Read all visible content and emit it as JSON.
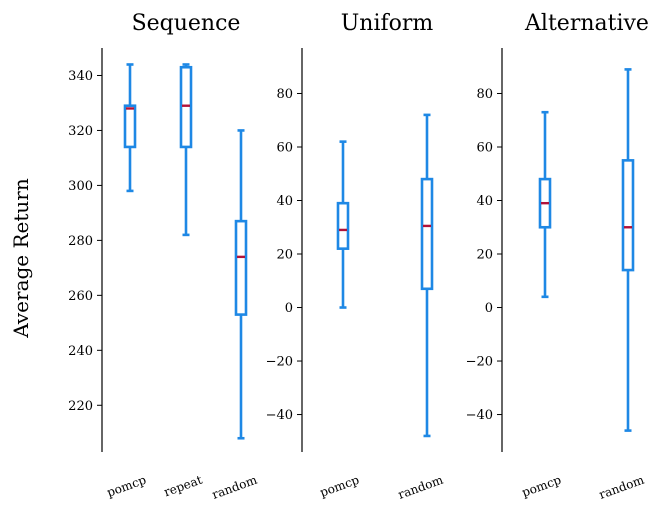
{
  "ylabel": "Average Return",
  "chart_data": [
    {
      "type": "boxplot",
      "title": "Sequence",
      "ylim": [
        203,
        350
      ],
      "yticks": [
        220,
        240,
        260,
        280,
        300,
        320,
        340
      ],
      "categories": [
        "pomcp",
        "repeat",
        "random"
      ],
      "boxes": [
        {
          "whislo": 298,
          "q1": 314,
          "med": 328,
          "q3": 329,
          "whishi": 344
        },
        {
          "whislo": 282,
          "q1": 314,
          "med": 329,
          "q3": 343,
          "whishi": 344
        },
        {
          "whislo": 208,
          "q1": 253,
          "med": 274,
          "q3": 287,
          "whishi": 320
        }
      ]
    },
    {
      "type": "boxplot",
      "title": "Uniform",
      "ylim": [
        -54,
        97
      ],
      "yticks": [
        -40,
        -20,
        0,
        20,
        40,
        60,
        80
      ],
      "categories": [
        "pomcp",
        "random"
      ],
      "boxes": [
        {
          "whislo": 0,
          "q1": 22,
          "med": 29,
          "q3": 39,
          "whishi": 62
        },
        {
          "whislo": -48,
          "q1": 7,
          "med": 30.5,
          "q3": 48,
          "whishi": 72
        }
      ]
    },
    {
      "type": "boxplot",
      "title": "Alternative",
      "ylim": [
        -54,
        97
      ],
      "yticks": [
        -40,
        -20,
        0,
        20,
        40,
        60,
        80
      ],
      "categories": [
        "pomcp",
        "random"
      ],
      "boxes": [
        {
          "whislo": 4,
          "q1": 30,
          "med": 39,
          "q3": 48,
          "whishi": 73
        },
        {
          "whislo": -46,
          "q1": 14,
          "med": 30,
          "q3": 55,
          "whishi": 89
        }
      ]
    }
  ]
}
